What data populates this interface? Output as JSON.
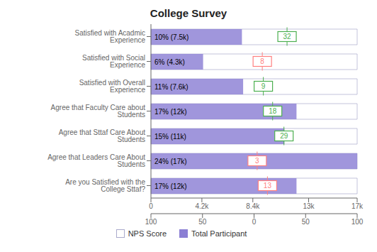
{
  "chart_data": {
    "type": "bar",
    "orientation": "horizontal",
    "title": "College Survey",
    "categories": [
      "Satisfied with Acadmic Experience",
      "Satisfied with Social Experience",
      "Satisfied with Overall Experience",
      "Agree that Faculty Care about Students",
      "Agree that Sttaf Care About Students",
      "Agree that Leaders Care About Students",
      "Are you Satisfied with the College Sttaf?"
    ],
    "series": [
      {
        "name": "NPS Score",
        "axis": "x2",
        "values": [
          32,
          8,
          9,
          18,
          29,
          3,
          13
        ],
        "colors": [
          "#4CAF50",
          "#FF8080",
          "#4CAF50",
          "#4CAF50",
          "#4CAF50",
          "#FF8080",
          "#FF8080"
        ]
      },
      {
        "name": "Total Participant",
        "color": "#8B7FD4",
        "values": [
          7500,
          4300,
          7600,
          12000,
          11000,
          17000,
          12000
        ],
        "value_labels": [
          "10% (7.5k)",
          "6% (4.3k)",
          "11% (7.6k)",
          "17% (12k)",
          "15% (11k)",
          "24% (17k)",
          "17% (12k)"
        ]
      }
    ],
    "xlim": [
      0,
      17000
    ],
    "xticks": [
      0,
      {
        "value": 4200,
        "label": "4.2k"
      },
      {
        "value": 8400,
        "label": "8.4k"
      },
      {
        "value": 13000,
        "label": "13k"
      },
      {
        "value": 17000,
        "label": "17k"
      }
    ],
    "x2lim": [
      -100,
      100
    ],
    "x2ticks": [
      {
        "value": -100,
        "label": "100"
      },
      {
        "value": -50,
        "label": "50"
      },
      0,
      50,
      100
    ],
    "data_labels": true
  }
}
